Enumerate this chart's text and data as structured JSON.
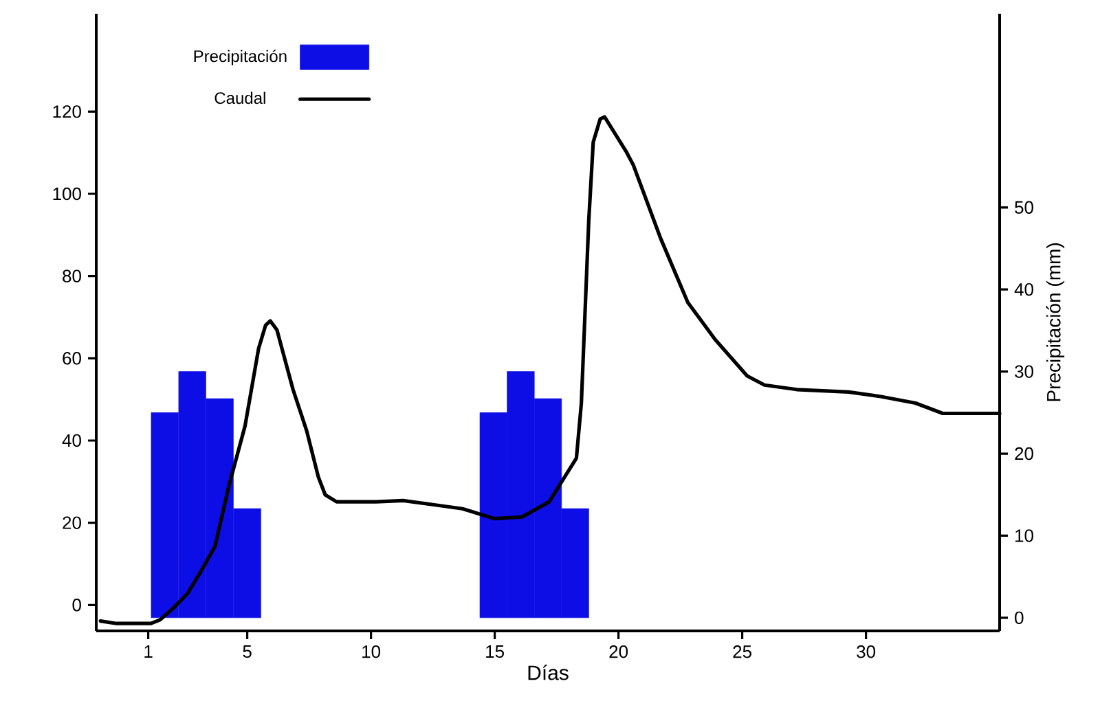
{
  "chart_data": {
    "type": "bar",
    "xlabel": "Días",
    "y2label": "Precipitación (mm)",
    "xlim": [
      -1.1,
      35.4
    ],
    "xticks": [
      1,
      5,
      10,
      15,
      20,
      25,
      30
    ],
    "ylim": [
      -6.3,
      143.8
    ],
    "yticks": [
      0,
      20,
      40,
      60,
      80,
      100,
      120
    ],
    "y2lim": [
      -1.6,
      73.6
    ],
    "y2ticks": [
      0,
      10,
      20,
      30,
      40,
      50
    ],
    "legend": "top left",
    "series": [
      {
        "name": "Precipitación",
        "axis": "y2",
        "color": "#0d0de6",
        "x": [
          1.67,
          2.78,
          3.89,
          5.0,
          14.95,
          16.05,
          17.15,
          18.25
        ],
        "values": [
          25,
          30,
          26.7,
          13.3,
          25,
          30,
          26.7,
          13.3
        ]
      },
      {
        "name": "Caudal",
        "type": "line",
        "axis": "y",
        "color": "#000000",
        "x": [
          -0.93,
          -0.28,
          1.11,
          1.48,
          2.04,
          2.59,
          3.15,
          3.7,
          4.26,
          4.91,
          5.46,
          5.74,
          5.93,
          6.2,
          6.85,
          7.4,
          7.87,
          8.15,
          8.61,
          10.2,
          11.3,
          12.4,
          13.7,
          15.0,
          16.1,
          17.2,
          18.3,
          18.5,
          18.8,
          18.98,
          19.26,
          19.44,
          20.3,
          20.6,
          21.7,
          22.8,
          23.9,
          25.2,
          25.9,
          27.2,
          29.3,
          30.6,
          32.0,
          33.1,
          35.4
        ],
        "values": [
          -3.9,
          -4.5,
          -4.5,
          -3.6,
          -0.6,
          2.8,
          8.4,
          14.3,
          29,
          43.5,
          62.4,
          68,
          69.1,
          66.9,
          52.4,
          42.4,
          31.2,
          26.8,
          25.1,
          25.1,
          25.4,
          24.5,
          23.4,
          21,
          21.4,
          25.1,
          35.7,
          49.1,
          93.6,
          112.6,
          118.2,
          118.7,
          110.4,
          107,
          89.2,
          73.6,
          64.6,
          55.7,
          53.5,
          52.4,
          51.8,
          50.7,
          49.1,
          46.6,
          46.6
        ]
      }
    ]
  }
}
